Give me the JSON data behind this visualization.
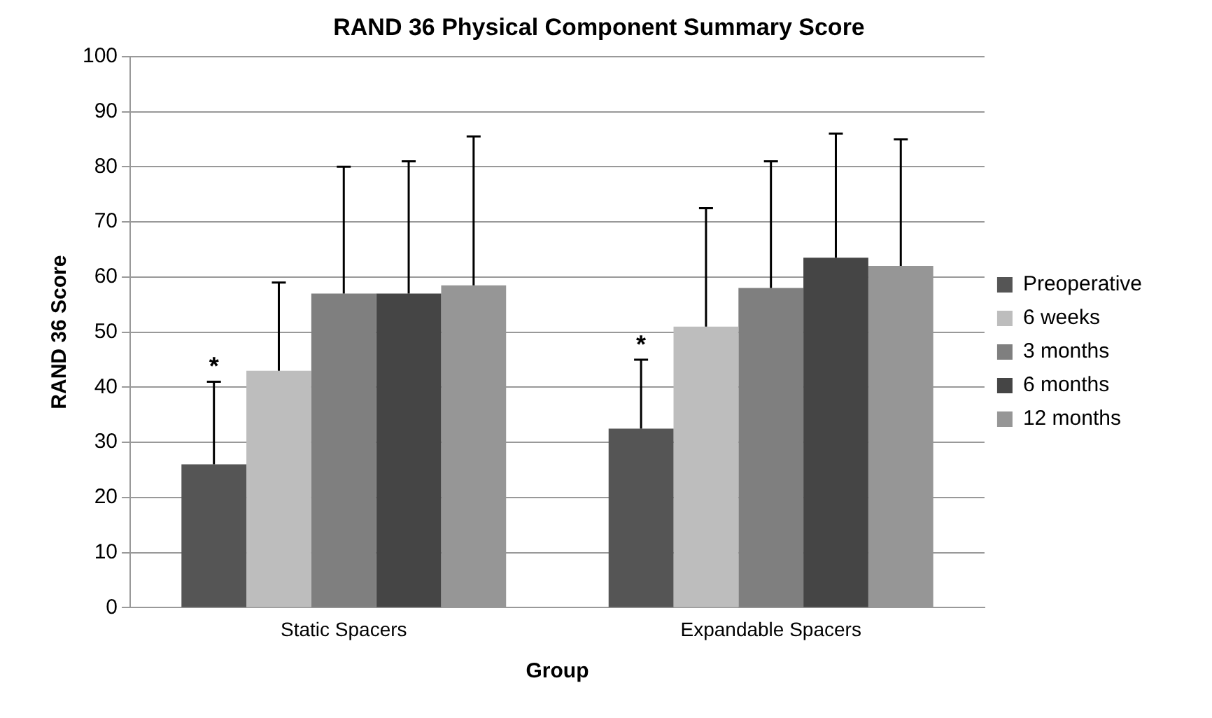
{
  "chart_data": {
    "type": "bar",
    "title": "RAND 36 Physical Component Summary Score",
    "xlabel": "Group",
    "ylabel": "RAND 36 Score",
    "categories": [
      "Static Spacers",
      "Expandable Spacers"
    ],
    "series": [
      {
        "name": "Preoperative",
        "color": "#555555",
        "values": [
          26,
          32.5
        ],
        "errors": [
          [
            26,
            41
          ],
          [
            32.5,
            45
          ]
        ]
      },
      {
        "name": "6 weeks",
        "color": "#bdbdbd",
        "values": [
          43,
          51
        ],
        "errors": [
          [
            43,
            59
          ],
          [
            51,
            72.5
          ]
        ]
      },
      {
        "name": "3 months",
        "color": "#7f7f7f",
        "values": [
          57,
          58
        ],
        "errors": [
          [
            57,
            80
          ],
          [
            58,
            81
          ]
        ]
      },
      {
        "name": "6 months",
        "color": "#454545",
        "values": [
          57,
          63.5
        ],
        "errors": [
          [
            57,
            81
          ],
          [
            63.5,
            86
          ]
        ]
      },
      {
        "name": "12 months",
        "color": "#969696",
        "values": [
          58.5,
          62
        ],
        "errors": [
          [
            58.5,
            85.5
          ],
          [
            62,
            85
          ]
        ]
      }
    ],
    "ylim": [
      0,
      100
    ],
    "yticks": [
      0,
      10,
      20,
      30,
      40,
      50,
      60,
      70,
      80,
      90,
      100
    ],
    "grid": "y",
    "legend": "right",
    "annotations": [
      "*",
      "*"
    ]
  }
}
